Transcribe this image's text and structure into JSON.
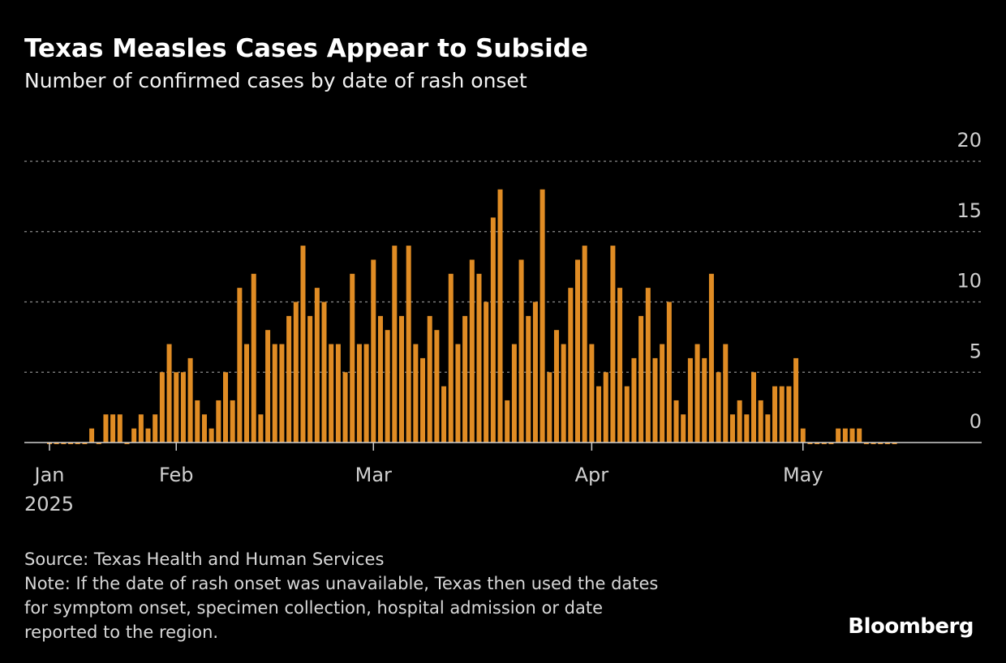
{
  "title": "Texas Measles Cases Appear to Subside",
  "subtitle": "Number of confirmed cases by date of rash onset",
  "footer": {
    "source": "Source: Texas Health and Human Services",
    "note_lines": [
      "Note: If the date of rash onset was unavailable, Texas then used the dates",
      "for symptom onset, specimen collection, hospital admission or date",
      "reported to the region."
    ]
  },
  "logo": "Bloomberg",
  "chart_data": {
    "type": "bar",
    "title": "Texas Measles Cases Appear to Subside",
    "subtitle": "Number of confirmed cases by date of rash onset",
    "xlabel": "",
    "ylabel": "",
    "ylim": [
      0,
      20
    ],
    "y_ticks": [
      "20",
      "15",
      "10",
      "5",
      "0"
    ],
    "y_tick_values": [
      20,
      15,
      10,
      5,
      0
    ],
    "y_axis_position": "right",
    "grid": true,
    "x_ticks": [
      {
        "label": "Jan",
        "date": "2025-01-14"
      },
      {
        "label": "Feb",
        "date": "2025-02-01"
      },
      {
        "label": "Mar",
        "date": "2025-03-01"
      },
      {
        "label": "Apr",
        "date": "2025-04-01"
      },
      {
        "label": "May",
        "date": "2025-05-01"
      }
    ],
    "x_year_label": "2025",
    "bar_color": "#e08c24",
    "x": [
      "2025-01-14",
      "2025-01-15",
      "2025-01-16",
      "2025-01-17",
      "2025-01-18",
      "2025-01-19",
      "2025-01-20",
      "2025-01-21",
      "2025-01-22",
      "2025-01-23",
      "2025-01-24",
      "2025-01-25",
      "2025-01-26",
      "2025-01-27",
      "2025-01-28",
      "2025-01-29",
      "2025-01-30",
      "2025-01-31",
      "2025-02-01",
      "2025-02-02",
      "2025-02-03",
      "2025-02-04",
      "2025-02-05",
      "2025-02-06",
      "2025-02-07",
      "2025-02-08",
      "2025-02-09",
      "2025-02-10",
      "2025-02-11",
      "2025-02-12",
      "2025-02-13",
      "2025-02-14",
      "2025-02-15",
      "2025-02-16",
      "2025-02-17",
      "2025-02-18",
      "2025-02-19",
      "2025-02-20",
      "2025-02-21",
      "2025-02-22",
      "2025-02-23",
      "2025-02-24",
      "2025-02-25",
      "2025-02-26",
      "2025-02-27",
      "2025-02-28",
      "2025-03-01",
      "2025-03-02",
      "2025-03-03",
      "2025-03-04",
      "2025-03-05",
      "2025-03-06",
      "2025-03-07",
      "2025-03-08",
      "2025-03-09",
      "2025-03-10",
      "2025-03-11",
      "2025-03-12",
      "2025-03-13",
      "2025-03-14",
      "2025-03-15",
      "2025-03-16",
      "2025-03-17",
      "2025-03-18",
      "2025-03-19",
      "2025-03-20",
      "2025-03-21",
      "2025-03-22",
      "2025-03-23",
      "2025-03-24",
      "2025-03-25",
      "2025-03-26",
      "2025-03-27",
      "2025-03-28",
      "2025-03-29",
      "2025-03-30",
      "2025-03-31",
      "2025-04-01",
      "2025-04-02",
      "2025-04-03",
      "2025-04-04",
      "2025-04-05",
      "2025-04-06",
      "2025-04-07",
      "2025-04-08",
      "2025-04-09",
      "2025-04-10",
      "2025-04-11",
      "2025-04-12",
      "2025-04-13",
      "2025-04-14",
      "2025-04-15",
      "2025-04-16",
      "2025-04-17",
      "2025-04-18",
      "2025-04-19",
      "2025-04-20",
      "2025-04-21",
      "2025-04-22",
      "2025-04-23",
      "2025-04-24",
      "2025-04-25",
      "2025-04-26",
      "2025-04-27",
      "2025-04-28",
      "2025-04-29",
      "2025-04-30",
      "2025-05-01",
      "2025-05-02",
      "2025-05-03",
      "2025-05-04",
      "2025-05-05",
      "2025-05-06",
      "2025-05-07",
      "2025-05-08",
      "2025-05-09",
      "2025-05-10",
      "2025-05-11",
      "2025-05-12",
      "2025-05-13",
      "2025-05-14"
    ],
    "values": [
      0,
      0,
      0,
      0,
      0,
      0,
      1,
      0,
      2,
      2,
      2,
      0,
      1,
      2,
      1,
      2,
      5,
      7,
      5,
      5,
      6,
      3,
      2,
      1,
      3,
      5,
      3,
      11,
      7,
      12,
      2,
      8,
      7,
      7,
      9,
      10,
      14,
      9,
      11,
      10,
      7,
      7,
      5,
      12,
      7,
      7,
      13,
      9,
      8,
      14,
      9,
      14,
      7,
      6,
      9,
      8,
      4,
      12,
      7,
      9,
      13,
      12,
      10,
      16,
      18,
      3,
      7,
      13,
      9,
      10,
      18,
      5,
      8,
      7,
      11,
      13,
      14,
      7,
      4,
      5,
      14,
      11,
      4,
      6,
      9,
      11,
      6,
      7,
      10,
      3,
      2,
      6,
      7,
      6,
      12,
      5,
      7,
      2,
      3,
      2,
      5,
      3,
      2,
      4,
      4,
      4,
      6,
      1,
      0,
      0,
      0,
      0,
      1,
      1,
      1,
      1,
      0,
      0,
      0,
      0,
      0
    ]
  }
}
